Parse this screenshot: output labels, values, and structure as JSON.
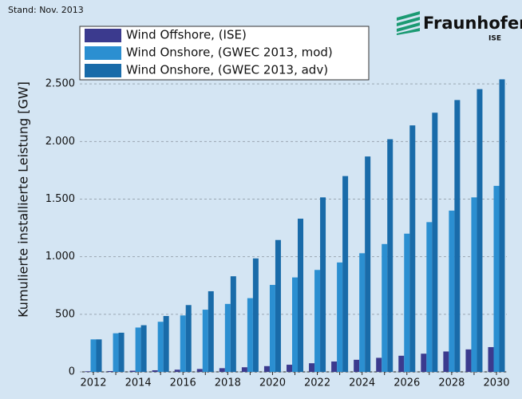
{
  "header": {
    "stand": "Stand: Nov. 2013",
    "brand": "Fraunhofer",
    "institute": "ISE"
  },
  "chart_data": {
    "type": "bar",
    "y_label": "Kumulierte installierte Leistung [GW]",
    "categories": [
      "2012",
      null,
      "2014",
      null,
      "2016",
      null,
      "2018",
      null,
      "2020",
      null,
      "2022",
      null,
      "2024",
      null,
      "2026",
      null,
      "2028",
      null,
      "2030"
    ],
    "series": [
      {
        "name": "Wind Offshore, (ISE)",
        "color": "#3b3a8e",
        "values": [
          5,
          7,
          10,
          14,
          19,
          25,
          32,
          40,
          50,
          62,
          75,
          90,
          105,
          122,
          140,
          158,
          177,
          195,
          215
        ]
      },
      {
        "name": "Wind Onshore, (GWEC 2013, mod)",
        "color": "#2b8fd1",
        "values": [
          282,
          335,
          385,
          435,
          490,
          540,
          590,
          640,
          755,
          820,
          885,
          950,
          1030,
          1110,
          1200,
          1300,
          1400,
          1515,
          1615
        ]
      },
      {
        "name": "Wind Onshore, (GWEC 2013, adv)",
        "color": "#196ba9",
        "values": [
          282,
          340,
          405,
          485,
          580,
          700,
          830,
          985,
          1145,
          1330,
          1515,
          1700,
          1870,
          2020,
          2140,
          2250,
          2360,
          2455,
          2540
        ]
      }
    ],
    "ylim": [
      0,
      3000
    ],
    "yticks": [
      0,
      500,
      {
        "value": 1000,
        "label": "1.000"
      },
      {
        "value": 1500,
        "label": "1.500"
      },
      {
        "value": 2000,
        "label": "2.000"
      },
      {
        "value": 2500,
        "label": "2.500"
      }
    ],
    "grid": true
  }
}
